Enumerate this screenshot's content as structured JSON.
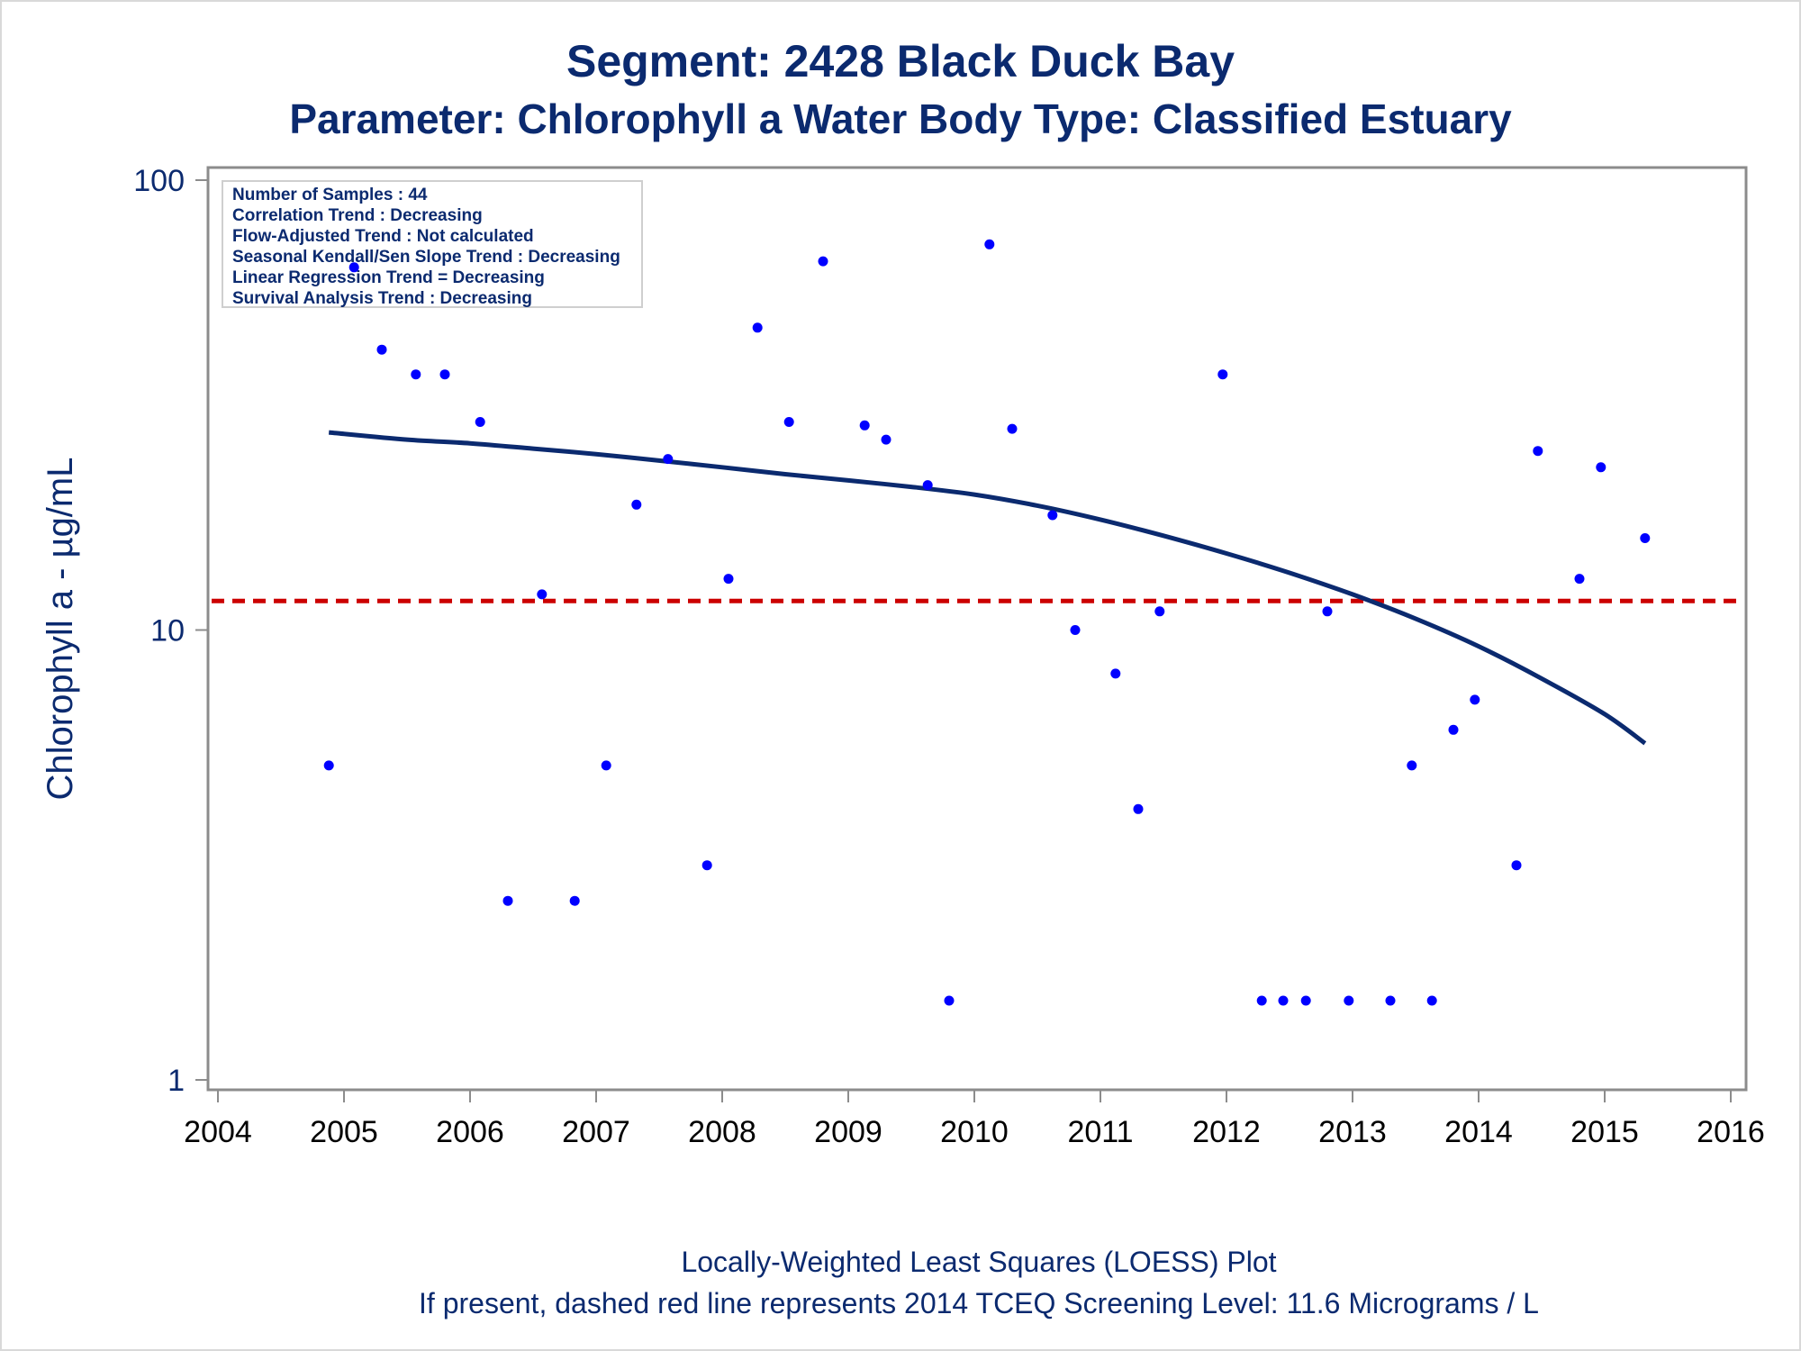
{
  "colors": {
    "title": "#0b2a6f",
    "points": "#0000ff",
    "loess": "#0b2a6f",
    "screening": "#cc0000",
    "axis": "#8c8c8c"
  },
  "chart_data": {
    "type": "scatter",
    "title": "Segment: 2428  Black Duck Bay",
    "subtitle": "Parameter: Chlorophyll a   Water Body Type: Classified Estuary",
    "xlabel": "",
    "ylabel": "Chlorophyll a -  µg/mL",
    "x_scale": "time (year)",
    "y_scale": "log10",
    "xlim": [
      2004,
      2016
    ],
    "ylim": [
      1,
      100
    ],
    "x_ticks": [
      "2004",
      "2005",
      "2006",
      "2007",
      "2008",
      "2009",
      "2010",
      "2011",
      "2012",
      "2013",
      "2014",
      "2015",
      "2016"
    ],
    "y_ticks": [
      "1",
      "10",
      "100"
    ],
    "grid": false,
    "stats_box": [
      "Number of Samples : 44",
      "Correlation Trend : Decreasing",
      "Flow-Adjusted Trend : Not calculated",
      "Seasonal Kendall/Sen Slope Trend : Decreasing",
      "Linear Regression Trend = Decreasing",
      "Survival Analysis Trend : Decreasing"
    ],
    "footnote_1": "Locally-Weighted Least Squares (LOESS) Plot",
    "footnote_2": "If present, dashed red line represents 2014 TCEQ Screening Level: 11.6 Micrograms / L",
    "screening_level": 11.6,
    "points": [
      {
        "x": 2004.88,
        "y": 5.0
      },
      {
        "x": 2005.08,
        "y": 64
      },
      {
        "x": 2005.3,
        "y": 42
      },
      {
        "x": 2005.57,
        "y": 37
      },
      {
        "x": 2005.8,
        "y": 37
      },
      {
        "x": 2006.08,
        "y": 29
      },
      {
        "x": 2006.3,
        "y": 2.5
      },
      {
        "x": 2006.57,
        "y": 12
      },
      {
        "x": 2006.83,
        "y": 2.5
      },
      {
        "x": 2007.08,
        "y": 5.0
      },
      {
        "x": 2007.32,
        "y": 19
      },
      {
        "x": 2007.57,
        "y": 24
      },
      {
        "x": 2007.88,
        "y": 3.0
      },
      {
        "x": 2008.05,
        "y": 13
      },
      {
        "x": 2008.28,
        "y": 47
      },
      {
        "x": 2008.53,
        "y": 29
      },
      {
        "x": 2008.8,
        "y": 66
      },
      {
        "x": 2009.13,
        "y": 28.5
      },
      {
        "x": 2009.3,
        "y": 26.5
      },
      {
        "x": 2009.63,
        "y": 21
      },
      {
        "x": 2009.8,
        "y": 1.5
      },
      {
        "x": 2010.12,
        "y": 72
      },
      {
        "x": 2010.3,
        "y": 28
      },
      {
        "x": 2010.62,
        "y": 18
      },
      {
        "x": 2010.8,
        "y": 10
      },
      {
        "x": 2011.12,
        "y": 8
      },
      {
        "x": 2011.3,
        "y": 4.0
      },
      {
        "x": 2011.47,
        "y": 11
      },
      {
        "x": 2011.97,
        "y": 37
      },
      {
        "x": 2012.28,
        "y": 1.5
      },
      {
        "x": 2012.45,
        "y": 1.5
      },
      {
        "x": 2012.63,
        "y": 1.5
      },
      {
        "x": 2012.8,
        "y": 11
      },
      {
        "x": 2012.97,
        "y": 1.5
      },
      {
        "x": 2013.3,
        "y": 1.5
      },
      {
        "x": 2013.47,
        "y": 5.0
      },
      {
        "x": 2013.63,
        "y": 1.5
      },
      {
        "x": 2013.8,
        "y": 6.0
      },
      {
        "x": 2013.97,
        "y": 7.0
      },
      {
        "x": 2014.3,
        "y": 3.0
      },
      {
        "x": 2014.47,
        "y": 25
      },
      {
        "x": 2014.8,
        "y": 13
      },
      {
        "x": 2014.97,
        "y": 23
      },
      {
        "x": 2015.32,
        "y": 16
      }
    ],
    "loess": [
      {
        "x": 2004.88,
        "y": 27.5
      },
      {
        "x": 2005.5,
        "y": 26.5
      },
      {
        "x": 2006.0,
        "y": 26.0
      },
      {
        "x": 2006.5,
        "y": 25.3
      },
      {
        "x": 2007.0,
        "y": 24.6
      },
      {
        "x": 2007.5,
        "y": 23.8
      },
      {
        "x": 2008.0,
        "y": 23.0
      },
      {
        "x": 2008.5,
        "y": 22.2
      },
      {
        "x": 2009.0,
        "y": 21.5
      },
      {
        "x": 2009.5,
        "y": 20.8
      },
      {
        "x": 2010.0,
        "y": 20.0
      },
      {
        "x": 2010.5,
        "y": 18.9
      },
      {
        "x": 2011.0,
        "y": 17.6
      },
      {
        "x": 2011.5,
        "y": 16.2
      },
      {
        "x": 2012.0,
        "y": 14.8
      },
      {
        "x": 2012.5,
        "y": 13.4
      },
      {
        "x": 2013.0,
        "y": 12.0
      },
      {
        "x": 2013.5,
        "y": 10.6
      },
      {
        "x": 2014.0,
        "y": 9.2
      },
      {
        "x": 2014.5,
        "y": 7.8
      },
      {
        "x": 2015.0,
        "y": 6.5
      },
      {
        "x": 2015.32,
        "y": 5.6
      }
    ]
  }
}
